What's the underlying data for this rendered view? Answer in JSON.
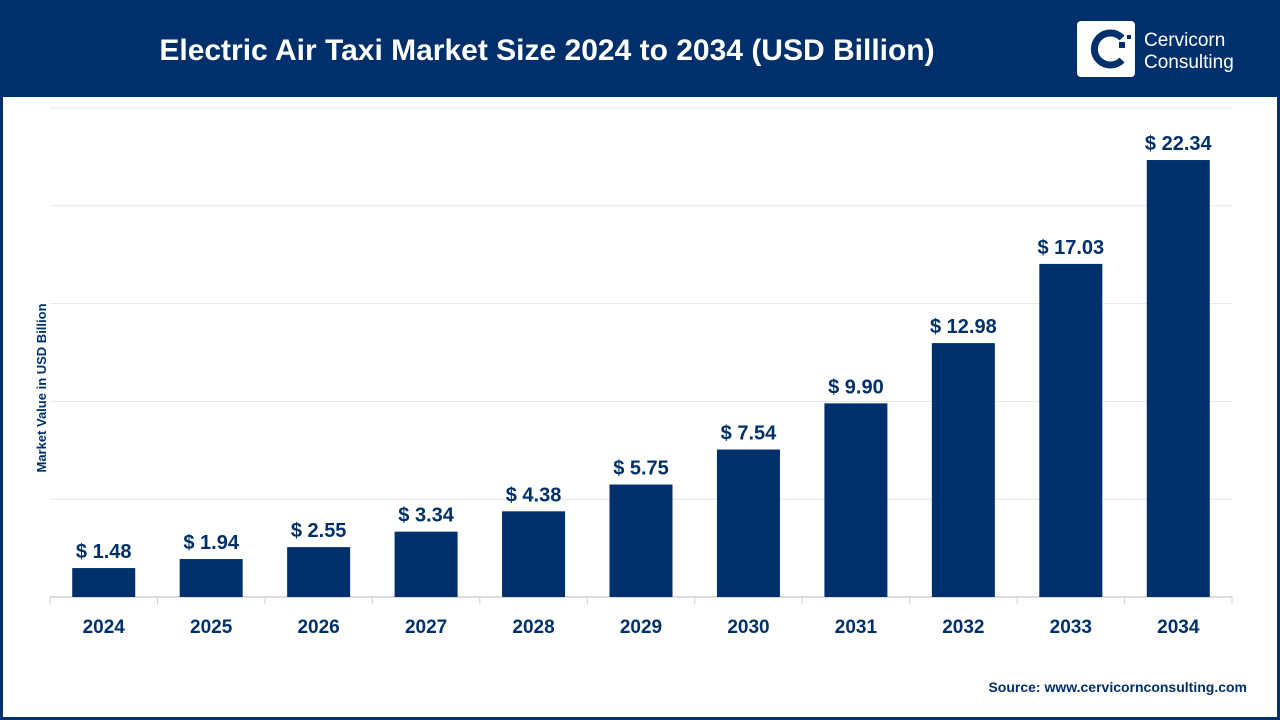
{
  "header": {
    "title": "Electric Air Taxi Market Size 2024 to 2034 (USD Billion)",
    "logo_line1": "Cervicorn",
    "logo_line2": "Consulting"
  },
  "source": "Source: www.cervicornconsulting.com",
  "colors": {
    "brand": "#00306b",
    "bar": "#00306b",
    "grid": "#e6e6e6"
  },
  "chart_data": {
    "type": "bar",
    "title": "Electric Air Taxi Market Size 2024 to 2034 (USD Billion)",
    "xlabel": "",
    "ylabel": "Market Value in USD Billion",
    "ylim": [
      0,
      25
    ],
    "grid": true,
    "categories": [
      "2024",
      "2025",
      "2026",
      "2027",
      "2028",
      "2029",
      "2030",
      "2031",
      "2032",
      "2033",
      "2034"
    ],
    "values": [
      1.48,
      1.94,
      2.55,
      3.34,
      4.38,
      5.75,
      7.54,
      9.9,
      12.98,
      17.03,
      22.34
    ],
    "data_labels": [
      "$ 1.48",
      "$ 1.94",
      "$ 2.55",
      "$ 3.34",
      "$ 4.38",
      "$ 5.75",
      "$ 7.54",
      "$ 9.90",
      "$ 12.98",
      "$ 17.03",
      "$ 22.34"
    ]
  }
}
